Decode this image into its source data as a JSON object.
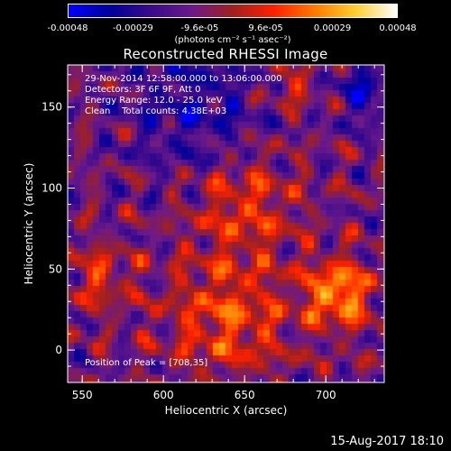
{
  "colorbar": {
    "tick_labels": [
      "-0.00048",
      "-0.00029",
      "-9.6e-05",
      "9.6e-05",
      "0.00029",
      "0.00048"
    ],
    "unit_label": "(photons cm⁻² s⁻¹ asec⁻²)",
    "range": [
      -0.00048,
      0.00048
    ],
    "colormap": [
      "#0000ff",
      "#00009a",
      "#3a0a8c",
      "#6a1a8a",
      "#a02020",
      "#ff2000",
      "#ff7a00",
      "#ffcf30",
      "#ffffff"
    ]
  },
  "title": "Reconstructed RHESSI Image",
  "info_lines": [
    "29-Nov-2014 12:58:00.000 to 13:06:00.000",
    "Detectors: 3F 6F 9F, Att 0",
    "Energy Range: 12.0 - 25.0 keV",
    "Clean    Total counts: 4.38E+03"
  ],
  "peak_label": "Position of Peak = [708,35]",
  "footer_date": "15-Aug-2017 18:10",
  "chart_data": {
    "type": "heatmap",
    "title": "Reconstructed RHESSI Image",
    "xlabel": "Heliocentric X (arcsec)",
    "ylabel": "Heliocentric Y (arcsec)",
    "x_ticks": [
      550,
      600,
      650,
      700
    ],
    "y_ticks": [
      0,
      50,
      100,
      150
    ],
    "xlim": [
      541,
      736
    ],
    "ylim": [
      -20,
      176
    ],
    "peak": [
      708,
      35
    ],
    "value_range": [
      -0.00048,
      0.00048
    ]
  }
}
